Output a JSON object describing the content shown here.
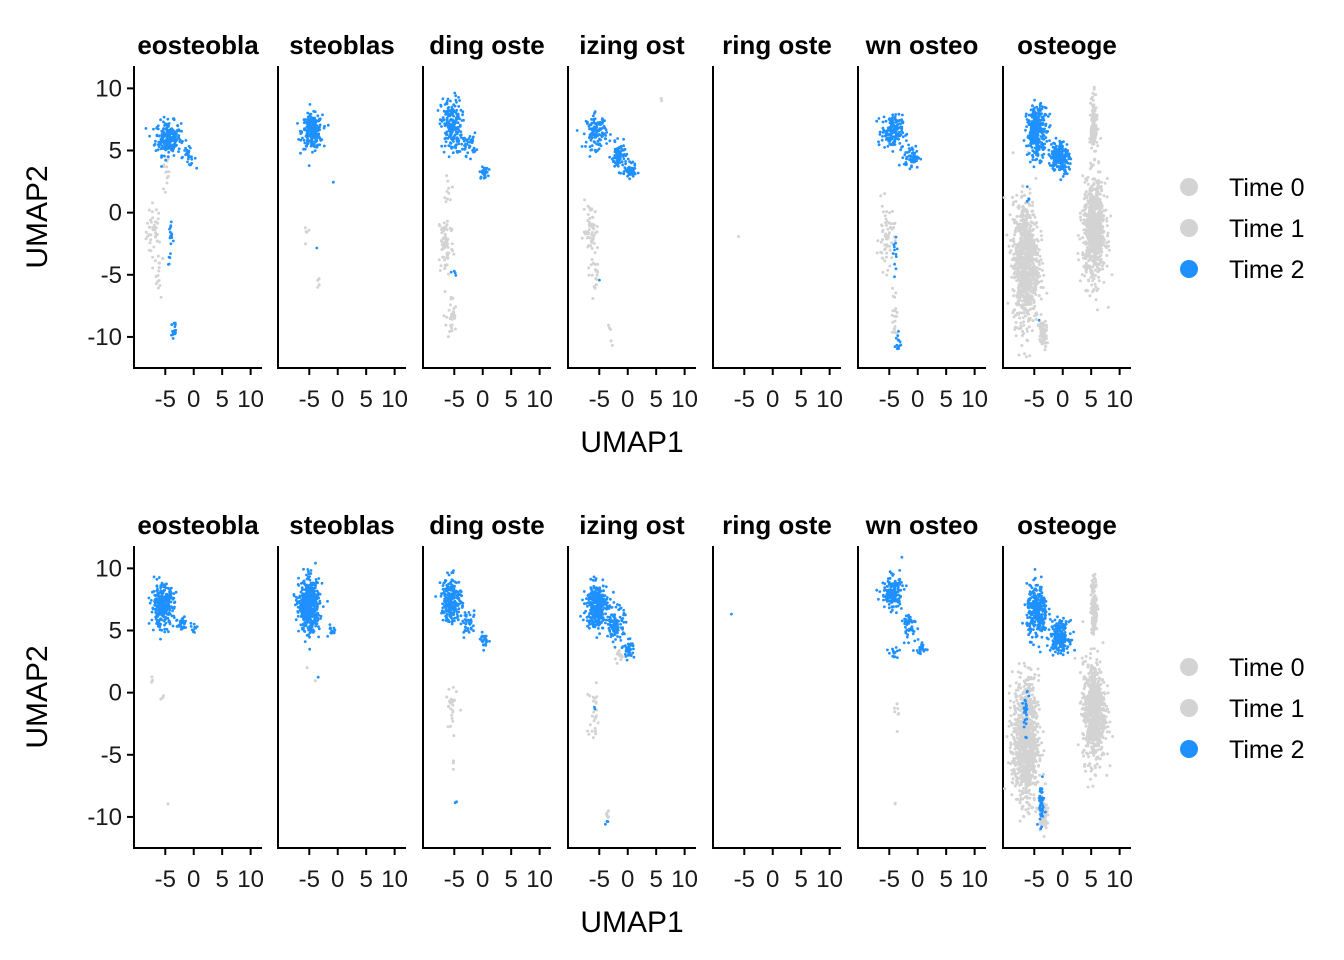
{
  "chart_data": [
    {
      "type": "scatter",
      "x_axis_title": "UMAP1",
      "y_axis_title": "UMAP2",
      "x_tick_labels": [
        "-5",
        "0",
        "5",
        "10"
      ],
      "y_tick_labels": [
        "10",
        "5",
        "0",
        "-5",
        "-10"
      ],
      "x_ticks": [
        -5,
        0,
        5,
        10
      ],
      "y_ticks": [
        10,
        5,
        0,
        -5,
        -10
      ],
      "xlim": [
        -10.5,
        12
      ],
      "ylim": [
        -12.5,
        11.8
      ],
      "facet_labels": [
        "eosteobla",
        "steoblas",
        "ding oste",
        "izing ost",
        "ring oste",
        "wn osteo",
        "osteoge"
      ],
      "legend": [
        {
          "label": "Time 0",
          "color": "#d3d3d3"
        },
        {
          "label": "Time 1",
          "color": "#d3d3d3"
        },
        {
          "label": "Time 2",
          "color": "#1e90ff"
        }
      ],
      "legend_position": "right",
      "grid": false,
      "facets": [
        {
          "grey": [
            {
              "cx": -7,
              "cy": -1.5,
              "rx": 1.5,
              "ry": 2.5,
              "n": 40
            },
            {
              "cx": -6,
              "cy": -5,
              "rx": 0.8,
              "ry": 2,
              "n": 15
            },
            {
              "cx": -5,
              "cy": 3,
              "rx": 0.8,
              "ry": 2,
              "n": 15
            }
          ],
          "blue": [
            {
              "cx": -4.5,
              "cy": 6,
              "rx": 2.5,
              "ry": 1.5,
              "n": 220
            },
            {
              "cx": -1,
              "cy": 4.5,
              "rx": 1.5,
              "ry": 0.8,
              "n": 25
            },
            {
              "cx": -4,
              "cy": -2.5,
              "rx": 0.5,
              "ry": 2,
              "n": 18
            },
            {
              "cx": -3.5,
              "cy": -9.5,
              "rx": 0.6,
              "ry": 1.3,
              "n": 15
            }
          ]
        },
        {
          "grey": [
            {
              "cx": -5.5,
              "cy": -1.5,
              "rx": 0.8,
              "ry": 2,
              "n": 5
            },
            {
              "cx": -3.5,
              "cy": -5.5,
              "rx": 0.6,
              "ry": 1,
              "n": 4
            }
          ],
          "blue": [
            {
              "cx": -4.5,
              "cy": 6.5,
              "rx": 2,
              "ry": 1.5,
              "n": 240
            },
            {
              "cx": -3.5,
              "cy": -3,
              "rx": 0.3,
              "ry": 0.3,
              "n": 1
            },
            {
              "cx": -0.5,
              "cy": 2.5,
              "rx": 0.3,
              "ry": 0.3,
              "n": 1
            }
          ]
        },
        {
          "grey": [
            {
              "cx": -6.5,
              "cy": -2.5,
              "rx": 1.5,
              "ry": 3,
              "n": 70
            },
            {
              "cx": -5.5,
              "cy": -8.5,
              "rx": 1,
              "ry": 2,
              "n": 30
            },
            {
              "cx": -6,
              "cy": 2,
              "rx": 0.6,
              "ry": 1.5,
              "n": 10
            }
          ],
          "blue": [
            {
              "cx": -5.5,
              "cy": 7,
              "rx": 2,
              "ry": 2.5,
              "n": 200
            },
            {
              "cx": -2.5,
              "cy": 5.5,
              "rx": 1.5,
              "ry": 1,
              "n": 40
            },
            {
              "cx": 0.2,
              "cy": 3.2,
              "rx": 0.8,
              "ry": 0.5,
              "n": 30
            },
            {
              "cx": -5,
              "cy": -5,
              "rx": 0.4,
              "ry": 1.2,
              "n": 4
            }
          ]
        },
        {
          "grey": [
            {
              "cx": -6.5,
              "cy": -1.5,
              "rx": 1.5,
              "ry": 2.5,
              "n": 60
            },
            {
              "cx": -5.5,
              "cy": -5,
              "rx": 1,
              "ry": 1.5,
              "n": 15
            },
            {
              "cx": -3,
              "cy": -10,
              "rx": 0.6,
              "ry": 1,
              "n": 5
            },
            {
              "cx": 6,
              "cy": 9,
              "rx": 0.2,
              "ry": 0.3,
              "n": 2
            }
          ],
          "blue": [
            {
              "cx": -5.5,
              "cy": 6.5,
              "rx": 2,
              "ry": 1.5,
              "n": 120
            },
            {
              "cx": -1.5,
              "cy": 4.5,
              "rx": 1.5,
              "ry": 1.2,
              "n": 90
            },
            {
              "cx": 0.5,
              "cy": 3.3,
              "rx": 1,
              "ry": 0.6,
              "n": 60
            },
            {
              "cx": -5,
              "cy": -5.5,
              "rx": 0.3,
              "ry": 0.3,
              "n": 1
            }
          ]
        },
        {
          "grey": [
            {
              "cx": -6,
              "cy": -2,
              "rx": 0.2,
              "ry": 0.2,
              "n": 1
            }
          ],
          "blue": []
        },
        {
          "grey": [
            {
              "cx": -5.5,
              "cy": -2,
              "rx": 1.5,
              "ry": 3,
              "n": 60
            },
            {
              "cx": -4,
              "cy": -8,
              "rx": 0.8,
              "ry": 2.5,
              "n": 20
            }
          ],
          "blue": [
            {
              "cx": -4.5,
              "cy": 6.5,
              "rx": 2,
              "ry": 1.5,
              "n": 180
            },
            {
              "cx": -1,
              "cy": 4.5,
              "rx": 1.5,
              "ry": 1,
              "n": 60
            },
            {
              "cx": -4,
              "cy": -3,
              "rx": 0.5,
              "ry": 2,
              "n": 12
            },
            {
              "cx": -3.5,
              "cy": -10.5,
              "rx": 0.6,
              "ry": 1,
              "n": 15
            }
          ]
        },
        {
          "grey": [
            {
              "cx": -6.5,
              "cy": -4,
              "rx": 2.5,
              "ry": 5.5,
              "n": 900
            },
            {
              "cx": 5.5,
              "cy": -1.5,
              "rx": 2.2,
              "ry": 4.5,
              "n": 700
            },
            {
              "cx": 5.5,
              "cy": 7,
              "rx": 0.6,
              "ry": 2.5,
              "n": 150
            },
            {
              "cx": -3.5,
              "cy": -9.8,
              "rx": 0.8,
              "ry": 1.3,
              "n": 60
            }
          ],
          "blue": [
            {
              "cx": -4.5,
              "cy": 6.5,
              "rx": 2,
              "ry": 2.3,
              "n": 300
            },
            {
              "cx": -0.5,
              "cy": 4.5,
              "rx": 1.8,
              "ry": 1.4,
              "n": 220
            },
            {
              "cx": -6,
              "cy": 1,
              "rx": 0.4,
              "ry": 0.8,
              "n": 4
            },
            {
              "cx": -4,
              "cy": -8.5,
              "rx": 0.3,
              "ry": 0.3,
              "n": 1
            }
          ]
        },
        {
          "grey": [
            {
              "cx": -7.5,
              "cy": 1,
              "rx": 0.5,
              "ry": 0.5,
              "n": 3
            },
            {
              "cx": -5.5,
              "cy": -0.5,
              "rx": 0.5,
              "ry": 0.5,
              "n": 3
            },
            {
              "cx": -4.5,
              "cy": -9,
              "rx": 0.2,
              "ry": 0.2,
              "n": 1
            }
          ],
          "blue": [
            {
              "cx": -5.5,
              "cy": 7,
              "rx": 2.2,
              "ry": 1.8,
              "n": 300
            },
            {
              "cx": -2,
              "cy": 5.5,
              "rx": 1.2,
              "ry": 0.8,
              "n": 30
            },
            {
              "cx": 0,
              "cy": 5.3,
              "rx": 0.8,
              "ry": 0.5,
              "n": 10
            }
          ]
        },
        {
          "grey": [
            {
              "cx": -5.5,
              "cy": 2,
              "rx": 0.5,
              "ry": 0.5,
              "n": 1
            },
            {
              "cx": -4,
              "cy": 1,
              "rx": 0.2,
              "ry": 0.2,
              "n": 1
            }
          ],
          "blue": [
            {
              "cx": -5,
              "cy": 7,
              "rx": 2,
              "ry": 2.3,
              "n": 500
            },
            {
              "cx": -1,
              "cy": 5,
              "rx": 0.8,
              "ry": 0.6,
              "n": 15
            },
            {
              "cx": -3.5,
              "cy": 1.2,
              "rx": 0.2,
              "ry": 0.2,
              "n": 1
            }
          ]
        },
        {
          "grey": [
            {
              "cx": -5.5,
              "cy": -1.5,
              "rx": 1,
              "ry": 2.5,
              "n": 25
            },
            {
              "cx": -5,
              "cy": -6,
              "rx": 0.4,
              "ry": 0.8,
              "n": 3
            }
          ],
          "blue": [
            {
              "cx": -5.5,
              "cy": 7.5,
              "rx": 2,
              "ry": 2,
              "n": 220
            },
            {
              "cx": -2.5,
              "cy": 5.5,
              "rx": 1.5,
              "ry": 1,
              "n": 40
            },
            {
              "cx": 0.3,
              "cy": 4.2,
              "rx": 0.8,
              "ry": 0.6,
              "n": 25
            },
            {
              "cx": -4.5,
              "cy": -9,
              "rx": 0.4,
              "ry": 0.3,
              "n": 2
            }
          ]
        },
        {
          "grey": [
            {
              "cx": -6,
              "cy": -2,
              "rx": 1.2,
              "ry": 2.5,
              "n": 25
            },
            {
              "cx": -3.5,
              "cy": -9.8,
              "rx": 0.5,
              "ry": 0.6,
              "n": 6
            },
            {
              "cx": -1.5,
              "cy": 3,
              "rx": 1,
              "ry": 0.6,
              "n": 15
            }
          ],
          "blue": [
            {
              "cx": -5.5,
              "cy": 7,
              "rx": 2,
              "ry": 2,
              "n": 350
            },
            {
              "cx": -2,
              "cy": 5.5,
              "rx": 1.5,
              "ry": 1.5,
              "n": 120
            },
            {
              "cx": 0.2,
              "cy": 3.5,
              "rx": 1,
              "ry": 0.8,
              "n": 40
            },
            {
              "cx": -6,
              "cy": -1.5,
              "rx": 0.3,
              "ry": 0.8,
              "n": 2
            },
            {
              "cx": -3.5,
              "cy": -10.5,
              "rx": 0.4,
              "ry": 0.4,
              "n": 3
            }
          ]
        },
        {
          "grey": [],
          "blue": [
            {
              "cx": -7.3,
              "cy": 6.3,
              "rx": 0.1,
              "ry": 0.1,
              "n": 1
            }
          ]
        },
        {
          "grey": [
            {
              "cx": -3.5,
              "cy": -1.5,
              "rx": 0.6,
              "ry": 1.5,
              "n": 8
            },
            {
              "cx": -4,
              "cy": -9,
              "rx": 0.2,
              "ry": 0.4,
              "n": 2
            }
          ],
          "blue": [
            {
              "cx": -4.5,
              "cy": 8,
              "rx": 2,
              "ry": 1.5,
              "n": 160
            },
            {
              "cx": -1.5,
              "cy": 5.5,
              "rx": 1.5,
              "ry": 1.2,
              "n": 50
            },
            {
              "cx": 0.5,
              "cy": 3.5,
              "rx": 1,
              "ry": 0.6,
              "n": 25
            },
            {
              "cx": -4,
              "cy": 3.2,
              "rx": 1.2,
              "ry": 0.5,
              "n": 15
            }
          ]
        },
        {
          "grey": [
            {
              "cx": -6.5,
              "cy": -4,
              "rx": 2.5,
              "ry": 5.5,
              "n": 900
            },
            {
              "cx": 5.5,
              "cy": -1.5,
              "rx": 2.2,
              "ry": 4.5,
              "n": 700
            },
            {
              "cx": 5.5,
              "cy": 7,
              "rx": 0.6,
              "ry": 2.5,
              "n": 150
            },
            {
              "cx": -3.5,
              "cy": -9.8,
              "rx": 0.8,
              "ry": 1.3,
              "n": 60
            }
          ],
          "blue": [
            {
              "cx": -4.5,
              "cy": 6.5,
              "rx": 2,
              "ry": 2.3,
              "n": 300
            },
            {
              "cx": -0.5,
              "cy": 4.5,
              "rx": 1.8,
              "ry": 1.4,
              "n": 220
            },
            {
              "cx": -6.5,
              "cy": -1.5,
              "rx": 0.5,
              "ry": 2,
              "n": 25
            },
            {
              "cx": -3.8,
              "cy": -9,
              "rx": 0.6,
              "ry": 1.8,
              "n": 50
            }
          ]
        }
      ]
    }
  ]
}
